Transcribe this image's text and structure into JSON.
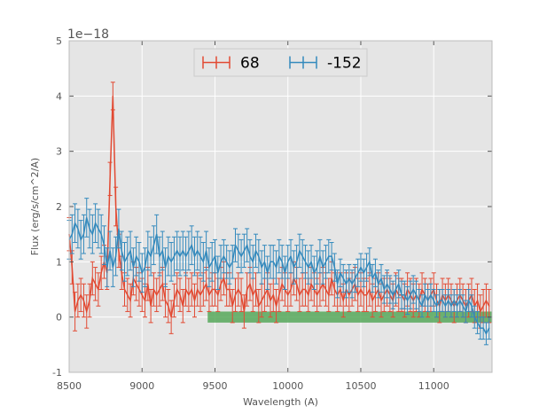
{
  "chart_data": {
    "type": "line",
    "xlabel": "Wavelength (A)",
    "ylabel": "Flux (erg/s/cm^2/A)",
    "xlim": [
      8500,
      11400
    ],
    "ylim": [
      -1,
      5
    ],
    "y_scale_label": "1e−18",
    "x_ticks": [
      8500,
      9000,
      9500,
      10000,
      10500,
      11000
    ],
    "y_ticks": [
      -1,
      0,
      1,
      2,
      3,
      4,
      5
    ],
    "grid": true,
    "legend_position": "top-center",
    "background": "#e5e5e5",
    "series": [
      {
        "name": "68",
        "color": "#e24a33",
        "x": [
          8500,
          8520,
          8540,
          8560,
          8580,
          8600,
          8620,
          8640,
          8660,
          8680,
          8700,
          8720,
          8740,
          8760,
          8780,
          8800,
          8820,
          8840,
          8860,
          8880,
          8900,
          8920,
          8940,
          8960,
          8980,
          9000,
          9020,
          9040,
          9060,
          9080,
          9100,
          9120,
          9140,
          9160,
          9180,
          9200,
          9220,
          9240,
          9260,
          9280,
          9300,
          9320,
          9340,
          9360,
          9380,
          9400,
          9420,
          9440,
          9460,
          9480,
          9500,
          9520,
          9540,
          9560,
          9580,
          9600,
          9620,
          9640,
          9660,
          9680,
          9700,
          9720,
          9740,
          9760,
          9780,
          9800,
          9820,
          9840,
          9860,
          9880,
          9900,
          9920,
          9940,
          9960,
          9980,
          10000,
          10020,
          10040,
          10060,
          10080,
          10100,
          10120,
          10140,
          10160,
          10180,
          10200,
          10220,
          10240,
          10260,
          10280,
          10300,
          10320,
          10340,
          10360,
          10380,
          10400,
          10420,
          10440,
          10460,
          10480,
          10500,
          10520,
          10540,
          10560,
          10580,
          10600,
          10620,
          10640,
          10660,
          10680,
          10700,
          10720,
          10740,
          10760,
          10780,
          10800,
          10820,
          10840,
          10860,
          10880,
          10900,
          10920,
          10940,
          10960,
          10980,
          11000,
          11020,
          11040,
          11060,
          11080,
          11100,
          11120,
          11140,
          11160,
          11180,
          11200,
          11220,
          11240,
          11260,
          11280,
          11300,
          11320,
          11340,
          11360,
          11380
        ],
        "y": [
          1.5,
          0.9,
          0.1,
          0.3,
          0.4,
          0.3,
          0.1,
          0.3,
          0.7,
          0.6,
          0.5,
          0.8,
          1.0,
          0.8,
          2.5,
          4.0,
          2.0,
          1.2,
          0.8,
          0.5,
          0.4,
          0.3,
          0.7,
          0.6,
          0.5,
          0.4,
          0.3,
          0.6,
          0.2,
          0.5,
          0.4,
          0.5,
          0.6,
          0.3,
          0.2,
          0.0,
          0.3,
          0.5,
          0.4,
          0.2,
          0.5,
          0.4,
          0.5,
          0.3,
          0.5,
          0.4,
          0.5,
          0.6,
          0.4,
          0.5,
          0.5,
          0.4,
          0.6,
          0.7,
          0.5,
          0.5,
          0.2,
          0.4,
          0.5,
          0.4,
          0.1,
          0.5,
          0.6,
          0.4,
          0.5,
          0.2,
          0.3,
          0.4,
          0.5,
          0.3,
          0.4,
          0.2,
          0.4,
          0.6,
          0.5,
          0.4,
          0.5,
          0.7,
          0.6,
          0.4,
          0.5,
          0.5,
          0.4,
          0.6,
          0.5,
          0.4,
          0.5,
          0.6,
          0.5,
          0.4,
          0.7,
          0.5,
          0.4,
          0.5,
          0.3,
          0.5,
          0.4,
          0.5,
          0.6,
          0.4,
          0.5,
          0.4,
          0.4,
          0.5,
          0.3,
          0.4,
          0.5,
          0.3,
          0.4,
          0.5,
          0.4,
          0.3,
          0.5,
          0.4,
          0.4,
          0.3,
          0.5,
          0.4,
          0.3,
          0.4,
          0.3,
          0.5,
          0.4,
          0.3,
          0.4,
          0.5,
          0.3,
          0.2,
          0.4,
          0.3,
          0.4,
          0.3,
          0.2,
          0.3,
          0.4,
          0.3,
          0.2,
          0.3,
          0.4,
          0.2,
          0.3,
          0.1,
          0.2,
          0.3,
          0.2
        ],
        "err": [
          0.3,
          0.3,
          0.35,
          0.3,
          0.3,
          0.3,
          0.3,
          0.3,
          0.3,
          0.3,
          0.3,
          0.3,
          0.3,
          0.3,
          0.3,
          0.25,
          0.35,
          0.3,
          0.3,
          0.3,
          0.3,
          0.3,
          0.3,
          0.3,
          0.3,
          0.3,
          0.3,
          0.3,
          0.3,
          0.3,
          0.3,
          0.3,
          0.3,
          0.3,
          0.3,
          0.3,
          0.3,
          0.3,
          0.3,
          0.3,
          0.3,
          0.3,
          0.3,
          0.3,
          0.3,
          0.3,
          0.3,
          0.3,
          0.3,
          0.3,
          0.3,
          0.3,
          0.3,
          0.3,
          0.3,
          0.3,
          0.3,
          0.3,
          0.3,
          0.3,
          0.3,
          0.3,
          0.3,
          0.3,
          0.3,
          0.3,
          0.3,
          0.3,
          0.3,
          0.3,
          0.3,
          0.3,
          0.3,
          0.3,
          0.3,
          0.3,
          0.3,
          0.3,
          0.3,
          0.3,
          0.3,
          0.3,
          0.3,
          0.3,
          0.3,
          0.3,
          0.3,
          0.3,
          0.3,
          0.3,
          0.3,
          0.3,
          0.3,
          0.3,
          0.3,
          0.3,
          0.3,
          0.3,
          0.3,
          0.3,
          0.3,
          0.3,
          0.3,
          0.3,
          0.3,
          0.3,
          0.3,
          0.3,
          0.3,
          0.3,
          0.3,
          0.3,
          0.3,
          0.3,
          0.3,
          0.3,
          0.3,
          0.3,
          0.3,
          0.3,
          0.3,
          0.3,
          0.3,
          0.3,
          0.3,
          0.3,
          0.3,
          0.3,
          0.3,
          0.3,
          0.3,
          0.3,
          0.3,
          0.3,
          0.3,
          0.3,
          0.3,
          0.3,
          0.3,
          0.3,
          0.3,
          0.3,
          0.3,
          0.3,
          0.3
        ]
      },
      {
        "name": "-152",
        "color": "#348abd",
        "x": [
          8500,
          8520,
          8540,
          8560,
          8580,
          8600,
          8620,
          8640,
          8660,
          8680,
          8700,
          8720,
          8740,
          8760,
          8780,
          8800,
          8820,
          8840,
          8860,
          8880,
          8900,
          8920,
          8940,
          8960,
          8980,
          9000,
          9020,
          9040,
          9060,
          9080,
          9100,
          9120,
          9140,
          9160,
          9180,
          9200,
          9220,
          9240,
          9260,
          9280,
          9300,
          9320,
          9340,
          9360,
          9380,
          9400,
          9420,
          9440,
          9460,
          9480,
          9500,
          9520,
          9540,
          9560,
          9580,
          9600,
          9620,
          9640,
          9660,
          9680,
          9700,
          9720,
          9740,
          9760,
          9780,
          9800,
          9820,
          9840,
          9860,
          9880,
          9900,
          9920,
          9940,
          9960,
          9980,
          10000,
          10020,
          10040,
          10060,
          10080,
          10100,
          10120,
          10140,
          10160,
          10180,
          10200,
          10220,
          10240,
          10260,
          10280,
          10300,
          10320,
          10340,
          10360,
          10380,
          10400,
          10420,
          10440,
          10460,
          10480,
          10500,
          10520,
          10540,
          10560,
          10580,
          10600,
          10620,
          10640,
          10660,
          10680,
          10700,
          10720,
          10740,
          10760,
          10780,
          10800,
          10820,
          10840,
          10860,
          10880,
          10900,
          10920,
          10940,
          10960,
          10980,
          11000,
          11020,
          11040,
          11060,
          11080,
          11100,
          11120,
          11140,
          11160,
          11180,
          11200,
          11220,
          11240,
          11260,
          11280,
          11300,
          11320,
          11340,
          11360,
          11380
        ],
        "y": [
          1.4,
          1.5,
          1.7,
          1.6,
          1.4,
          1.5,
          1.8,
          1.6,
          1.5,
          1.7,
          1.6,
          1.5,
          1.3,
          0.9,
          1.2,
          0.9,
          1.1,
          1.6,
          1.2,
          1.0,
          1.1,
          1.2,
          0.9,
          1.1,
          1.0,
          0.8,
          0.9,
          1.2,
          1.1,
          1.3,
          1.5,
          1.1,
          1.2,
          0.9,
          1.1,
          1.0,
          1.1,
          1.2,
          1.1,
          1.2,
          1.1,
          1.2,
          1.3,
          1.1,
          1.2,
          1.1,
          1.0,
          1.2,
          0.9,
          1.0,
          1.1,
          0.8,
          1.0,
          1.1,
          1.0,
          0.9,
          1.0,
          1.3,
          1.2,
          1.1,
          1.2,
          1.3,
          1.1,
          1.0,
          1.2,
          1.1,
          0.9,
          1.0,
          0.8,
          1.0,
          1.0,
          0.9,
          1.1,
          1.0,
          0.8,
          1.0,
          1.1,
          0.9,
          1.0,
          1.2,
          1.1,
          1.0,
          0.9,
          1.0,
          0.8,
          0.9,
          1.1,
          0.9,
          1.0,
          1.1,
          1.1,
          0.9,
          0.6,
          0.8,
          0.7,
          0.6,
          0.7,
          0.6,
          0.7,
          0.8,
          0.9,
          0.8,
          0.9,
          1.0,
          0.7,
          0.8,
          0.6,
          0.7,
          0.5,
          0.6,
          0.5,
          0.4,
          0.5,
          0.6,
          0.4,
          0.4,
          0.3,
          0.4,
          0.5,
          0.4,
          0.3,
          0.2,
          0.4,
          0.3,
          0.4,
          0.3,
          0.2,
          0.3,
          0.3,
          0.2,
          0.3,
          0.2,
          0.3,
          0.2,
          0.3,
          0.2,
          0.1,
          0.3,
          0.2,
          0.0,
          -0.1,
          -0.2,
          -0.2,
          -0.3,
          -0.2
        ],
        "err": [
          0.35,
          0.35,
          0.35,
          0.35,
          0.35,
          0.35,
          0.35,
          0.35,
          0.35,
          0.35,
          0.35,
          0.35,
          0.35,
          0.35,
          0.35,
          0.35,
          0.35,
          0.35,
          0.35,
          0.35,
          0.35,
          0.35,
          0.35,
          0.35,
          0.35,
          0.35,
          0.35,
          0.35,
          0.35,
          0.35,
          0.35,
          0.35,
          0.35,
          0.35,
          0.35,
          0.35,
          0.35,
          0.35,
          0.35,
          0.35,
          0.35,
          0.35,
          0.35,
          0.35,
          0.35,
          0.35,
          0.35,
          0.35,
          0.35,
          0.35,
          0.3,
          0.3,
          0.3,
          0.3,
          0.3,
          0.3,
          0.3,
          0.3,
          0.3,
          0.3,
          0.3,
          0.3,
          0.3,
          0.3,
          0.3,
          0.3,
          0.3,
          0.3,
          0.3,
          0.3,
          0.3,
          0.3,
          0.3,
          0.3,
          0.3,
          0.3,
          0.3,
          0.3,
          0.3,
          0.3,
          0.3,
          0.3,
          0.3,
          0.3,
          0.3,
          0.3,
          0.3,
          0.3,
          0.3,
          0.3,
          0.25,
          0.25,
          0.25,
          0.25,
          0.25,
          0.25,
          0.25,
          0.25,
          0.25,
          0.25,
          0.25,
          0.25,
          0.25,
          0.25,
          0.25,
          0.25,
          0.25,
          0.25,
          0.25,
          0.25,
          0.25,
          0.25,
          0.25,
          0.25,
          0.25,
          0.25,
          0.25,
          0.25,
          0.25,
          0.25,
          0.2,
          0.2,
          0.2,
          0.2,
          0.2,
          0.2,
          0.2,
          0.2,
          0.2,
          0.2,
          0.2,
          0.2,
          0.2,
          0.2,
          0.2,
          0.2,
          0.2,
          0.2,
          0.2,
          0.2,
          0.2,
          0.2,
          0.2,
          0.2,
          0.2
        ]
      }
    ],
    "shaded_band": {
      "color": "#56a85a",
      "x": [
        9450,
        11400
      ],
      "y": [
        -0.1,
        0.1
      ]
    }
  }
}
